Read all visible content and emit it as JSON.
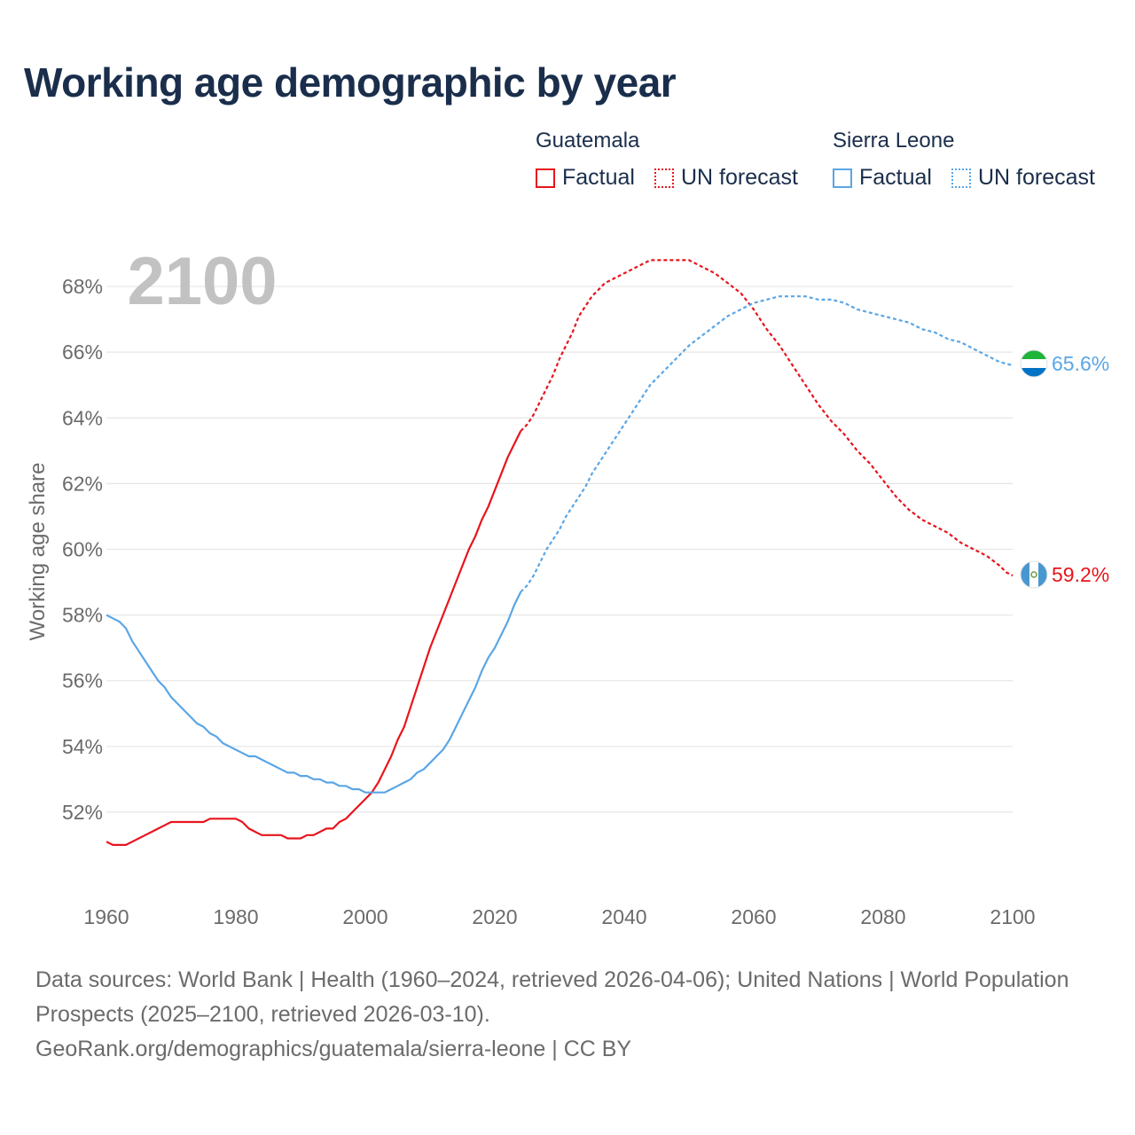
{
  "header": {
    "title": "Working age demographic by year"
  },
  "legend": {
    "groups": [
      {
        "country": "Guatemala",
        "factual_label": "Factual",
        "forecast_label": "UN forecast",
        "color": "#e8141c"
      },
      {
        "country": "Sierra Leone",
        "factual_label": "Factual",
        "forecast_label": "UN forecast",
        "color": "#5aa6e5"
      }
    ]
  },
  "end_labels": {
    "guatemala": "59.2%",
    "sierra_leone": "65.6%"
  },
  "footer": {
    "sources": "Data sources: World Bank | Health (1960–2024, retrieved 2026-04-06); United Nations | World Population Prospects (2025–2100, retrieved 2026-03-10).",
    "link": "GeoRank.org/demographics/guatemala/sierra-leone | CC BY"
  },
  "chart_data": {
    "type": "line",
    "title": "Working age demographic by year",
    "year_watermark": "2100",
    "xlabel": "",
    "ylabel": "Working age share",
    "xlim": [
      1960,
      2100
    ],
    "ylim": [
      50,
      69
    ],
    "x_ticks": [
      1960,
      1980,
      2000,
      2020,
      2040,
      2060,
      2080,
      2100
    ],
    "x_tick_labels": [
      "1960",
      "1980",
      "2000",
      "2020",
      "2040",
      "2060",
      "2080",
      "2100"
    ],
    "y_ticks": [
      52,
      54,
      56,
      58,
      60,
      62,
      64,
      66,
      68
    ],
    "y_tick_labels": [
      "52%",
      "54%",
      "56%",
      "58%",
      "60%",
      "62%",
      "64%",
      "66%",
      "68%"
    ],
    "grid": true,
    "factual_range": [
      1960,
      2024
    ],
    "forecast_range": [
      2024,
      2100
    ],
    "series": [
      {
        "name": "Guatemala",
        "color": "#e8141c",
        "end_value": 59.2,
        "points": [
          [
            1960,
            51.1
          ],
          [
            1961,
            51.0
          ],
          [
            1962,
            51.0
          ],
          [
            1963,
            51.0
          ],
          [
            1964,
            51.1
          ],
          [
            1965,
            51.2
          ],
          [
            1966,
            51.3
          ],
          [
            1967,
            51.4
          ],
          [
            1968,
            51.5
          ],
          [
            1969,
            51.6
          ],
          [
            1970,
            51.7
          ],
          [
            1972,
            51.7
          ],
          [
            1974,
            51.7
          ],
          [
            1975,
            51.7
          ],
          [
            1976,
            51.8
          ],
          [
            1978,
            51.8
          ],
          [
            1980,
            51.8
          ],
          [
            1981,
            51.7
          ],
          [
            1982,
            51.5
          ],
          [
            1983,
            51.4
          ],
          [
            1984,
            51.3
          ],
          [
            1986,
            51.3
          ],
          [
            1987,
            51.3
          ],
          [
            1988,
            51.2
          ],
          [
            1990,
            51.2
          ],
          [
            1991,
            51.3
          ],
          [
            1992,
            51.3
          ],
          [
            1993,
            51.4
          ],
          [
            1994,
            51.5
          ],
          [
            1995,
            51.5
          ],
          [
            1996,
            51.7
          ],
          [
            1997,
            51.8
          ],
          [
            1998,
            52.0
          ],
          [
            1999,
            52.2
          ],
          [
            2000,
            52.4
          ],
          [
            2001,
            52.6
          ],
          [
            2002,
            52.9
          ],
          [
            2003,
            53.3
          ],
          [
            2004,
            53.7
          ],
          [
            2005,
            54.2
          ],
          [
            2006,
            54.6
          ],
          [
            2007,
            55.2
          ],
          [
            2008,
            55.8
          ],
          [
            2009,
            56.4
          ],
          [
            2010,
            57.0
          ],
          [
            2011,
            57.5
          ],
          [
            2012,
            58.0
          ],
          [
            2013,
            58.5
          ],
          [
            2014,
            59.0
          ],
          [
            2015,
            59.5
          ],
          [
            2016,
            60.0
          ],
          [
            2017,
            60.4
          ],
          [
            2018,
            60.9
          ],
          [
            2019,
            61.3
          ],
          [
            2020,
            61.8
          ],
          [
            2021,
            62.3
          ],
          [
            2022,
            62.8
          ],
          [
            2023,
            63.2
          ],
          [
            2024,
            63.6
          ],
          [
            2025,
            63.8
          ],
          [
            2026,
            64.1
          ],
          [
            2027,
            64.5
          ],
          [
            2028,
            64.9
          ],
          [
            2029,
            65.3
          ],
          [
            2030,
            65.8
          ],
          [
            2031,
            66.2
          ],
          [
            2032,
            66.6
          ],
          [
            2033,
            67.1
          ],
          [
            2034,
            67.4
          ],
          [
            2035,
            67.7
          ],
          [
            2036,
            67.9
          ],
          [
            2037,
            68.1
          ],
          [
            2038,
            68.2
          ],
          [
            2039,
            68.3
          ],
          [
            2040,
            68.4
          ],
          [
            2042,
            68.6
          ],
          [
            2044,
            68.8
          ],
          [
            2045,
            68.8
          ],
          [
            2048,
            68.8
          ],
          [
            2050,
            68.8
          ],
          [
            2052,
            68.6
          ],
          [
            2054,
            68.4
          ],
          [
            2056,
            68.1
          ],
          [
            2058,
            67.8
          ],
          [
            2060,
            67.3
          ],
          [
            2062,
            66.7
          ],
          [
            2064,
            66.2
          ],
          [
            2066,
            65.6
          ],
          [
            2068,
            65.0
          ],
          [
            2070,
            64.4
          ],
          [
            2072,
            63.9
          ],
          [
            2074,
            63.5
          ],
          [
            2076,
            63.0
          ],
          [
            2078,
            62.6
          ],
          [
            2080,
            62.1
          ],
          [
            2082,
            61.6
          ],
          [
            2084,
            61.2
          ],
          [
            2086,
            60.9
          ],
          [
            2088,
            60.7
          ],
          [
            2090,
            60.5
          ],
          [
            2092,
            60.2
          ],
          [
            2094,
            60.0
          ],
          [
            2096,
            59.8
          ],
          [
            2098,
            59.5
          ],
          [
            2099,
            59.3
          ],
          [
            2100,
            59.2
          ]
        ]
      },
      {
        "name": "Sierra Leone",
        "color": "#5aa6e5",
        "end_value": 65.6,
        "points": [
          [
            1960,
            58.0
          ],
          [
            1961,
            57.9
          ],
          [
            1962,
            57.8
          ],
          [
            1963,
            57.6
          ],
          [
            1964,
            57.2
          ],
          [
            1965,
            56.9
          ],
          [
            1966,
            56.6
          ],
          [
            1967,
            56.3
          ],
          [
            1968,
            56.0
          ],
          [
            1969,
            55.8
          ],
          [
            1970,
            55.5
          ],
          [
            1971,
            55.3
          ],
          [
            1972,
            55.1
          ],
          [
            1973,
            54.9
          ],
          [
            1974,
            54.7
          ],
          [
            1975,
            54.6
          ],
          [
            1976,
            54.4
          ],
          [
            1977,
            54.3
          ],
          [
            1978,
            54.1
          ],
          [
            1979,
            54.0
          ],
          [
            1980,
            53.9
          ],
          [
            1981,
            53.8
          ],
          [
            1982,
            53.7
          ],
          [
            1983,
            53.7
          ],
          [
            1984,
            53.6
          ],
          [
            1985,
            53.5
          ],
          [
            1986,
            53.4
          ],
          [
            1987,
            53.3
          ],
          [
            1988,
            53.2
          ],
          [
            1989,
            53.2
          ],
          [
            1990,
            53.1
          ],
          [
            1991,
            53.1
          ],
          [
            1992,
            53.0
          ],
          [
            1993,
            53.0
          ],
          [
            1994,
            52.9
          ],
          [
            1995,
            52.9
          ],
          [
            1996,
            52.8
          ],
          [
            1997,
            52.8
          ],
          [
            1998,
            52.7
          ],
          [
            1999,
            52.7
          ],
          [
            2000,
            52.6
          ],
          [
            2001,
            52.6
          ],
          [
            2002,
            52.6
          ],
          [
            2003,
            52.6
          ],
          [
            2004,
            52.7
          ],
          [
            2005,
            52.8
          ],
          [
            2006,
            52.9
          ],
          [
            2007,
            53.0
          ],
          [
            2008,
            53.2
          ],
          [
            2009,
            53.3
          ],
          [
            2010,
            53.5
          ],
          [
            2011,
            53.7
          ],
          [
            2012,
            53.9
          ],
          [
            2013,
            54.2
          ],
          [
            2014,
            54.6
          ],
          [
            2015,
            55.0
          ],
          [
            2016,
            55.4
          ],
          [
            2017,
            55.8
          ],
          [
            2018,
            56.3
          ],
          [
            2019,
            56.7
          ],
          [
            2020,
            57.0
          ],
          [
            2021,
            57.4
          ],
          [
            2022,
            57.8
          ],
          [
            2023,
            58.3
          ],
          [
            2024,
            58.7
          ],
          [
            2025,
            58.9
          ],
          [
            2026,
            59.2
          ],
          [
            2027,
            59.6
          ],
          [
            2028,
            60.0
          ],
          [
            2029,
            60.3
          ],
          [
            2030,
            60.6
          ],
          [
            2031,
            61.0
          ],
          [
            2032,
            61.3
          ],
          [
            2033,
            61.6
          ],
          [
            2034,
            61.9
          ],
          [
            2035,
            62.3
          ],
          [
            2036,
            62.6
          ],
          [
            2037,
            62.9
          ],
          [
            2038,
            63.2
          ],
          [
            2039,
            63.5
          ],
          [
            2040,
            63.8
          ],
          [
            2041,
            64.1
          ],
          [
            2042,
            64.4
          ],
          [
            2043,
            64.7
          ],
          [
            2044,
            65.0
          ],
          [
            2046,
            65.4
          ],
          [
            2048,
            65.8
          ],
          [
            2050,
            66.2
          ],
          [
            2052,
            66.5
          ],
          [
            2054,
            66.8
          ],
          [
            2056,
            67.1
          ],
          [
            2058,
            67.3
          ],
          [
            2060,
            67.5
          ],
          [
            2062,
            67.6
          ],
          [
            2064,
            67.7
          ],
          [
            2066,
            67.7
          ],
          [
            2068,
            67.7
          ],
          [
            2070,
            67.6
          ],
          [
            2072,
            67.6
          ],
          [
            2074,
            67.5
          ],
          [
            2076,
            67.3
          ],
          [
            2078,
            67.2
          ],
          [
            2080,
            67.1
          ],
          [
            2082,
            67.0
          ],
          [
            2084,
            66.9
          ],
          [
            2086,
            66.7
          ],
          [
            2088,
            66.6
          ],
          [
            2090,
            66.4
          ],
          [
            2092,
            66.3
          ],
          [
            2094,
            66.1
          ],
          [
            2096,
            65.9
          ],
          [
            2098,
            65.7
          ],
          [
            2100,
            65.6
          ]
        ]
      }
    ]
  },
  "colors": {
    "title": "#1a2e4c",
    "grid": "#e6e6e6",
    "axis_text": "#6b6b6b",
    "watermark": "#c2c2c2"
  }
}
